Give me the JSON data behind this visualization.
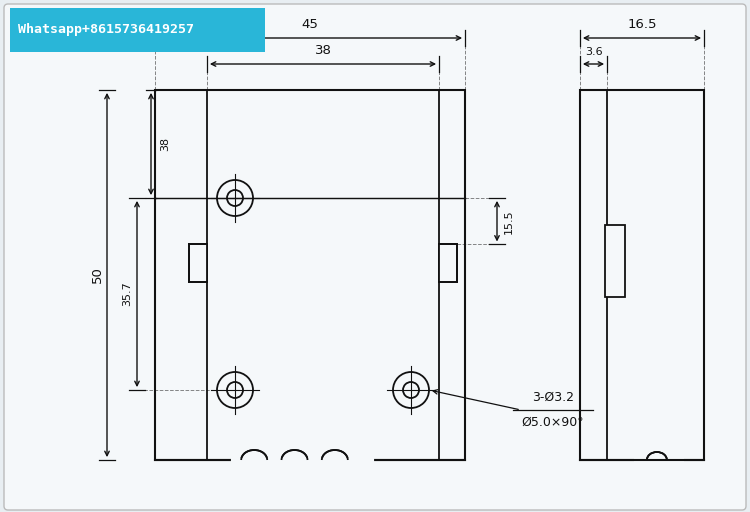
{
  "bg_color": "#e8eef2",
  "paper_color": "#f5f8fa",
  "line_color": "#111111",
  "header_bg": "#29b6d8",
  "header_text": "Whatsapp+8615736419257",
  "header_text_color": "#ffffff",
  "hole_note1": "3-Ø3.2",
  "hole_note2": "Ø5.0×90°",
  "dim_45": "45",
  "dim_38": "38",
  "dim_38v": "38",
  "dim_50": "50",
  "dim_35p7": "35.7",
  "dim_15p5": "15.5",
  "dim_3p6": "3.6",
  "dim_16p5": "16.5"
}
